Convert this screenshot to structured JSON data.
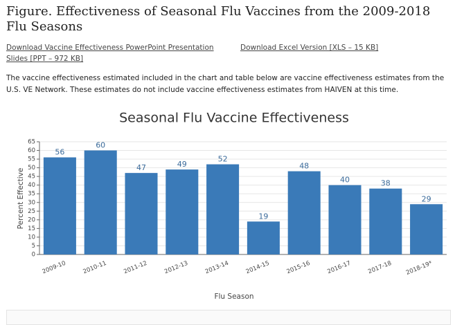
{
  "page": {
    "heading": "Figure. Effectiveness of Seasonal Flu Vaccines from the 2009-2018 Flu Seasons",
    "link_ppt": "Download Vaccine Effectiveness PowerPoint Presentation Slides [PPT – 972 KB]",
    "link_xls": "Download Excel Version [XLS – 15 KB]",
    "description": "The vaccine effectiveness estimated included in the chart and table below are vaccine effectiveness estimates from the U.S. VE Network. These estimates do not include vaccine effectiveness estimates from HAIVEN at this time."
  },
  "chart_data": {
    "type": "bar",
    "title": "Seasonal Flu Vaccine Effectiveness",
    "x_label": "Flu Season",
    "y_label": "Percent Effective",
    "categories": [
      "2009-10",
      "2010-11",
      "2011-12",
      "2012-13",
      "2013-14",
      "2014-15",
      "2015-16",
      "2016-17",
      "2017-18",
      "2018-19*"
    ],
    "values": [
      56,
      60,
      47,
      49,
      52,
      19,
      48,
      40,
      38,
      29
    ],
    "color": "#3a7ab8",
    "ylim": [
      0,
      65
    ],
    "yticks": [
      0,
      5,
      10,
      15,
      20,
      25,
      30,
      35,
      40,
      45,
      50,
      55,
      60,
      65
    ],
    "grid": true
  }
}
